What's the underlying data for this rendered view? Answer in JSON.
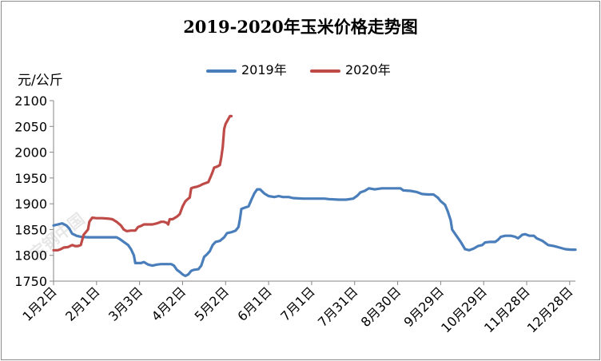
{
  "chart_data": {
    "type": "line",
    "title": "2019-2020年玉米价格走势图",
    "ylabel": "元/公斤",
    "ylim": [
      1750,
      2100
    ],
    "y_ticks": [
      1750,
      1800,
      1850,
      1900,
      1950,
      2000,
      2050,
      2100
    ],
    "x_tick_labels": [
      "1月2日",
      "2月1日",
      "3月3日",
      "4月2日",
      "5月2日",
      "6月1日",
      "7月1日",
      "7月31日",
      "8月30日",
      "9月29日",
      "10月29日",
      "11月28日",
      "12月28日"
    ],
    "x_unit": "day-of-year",
    "x_tick_days": [
      1,
      31,
      61,
      91,
      121,
      151,
      181,
      211,
      241,
      271,
      301,
      331,
      361
    ],
    "x_range": [
      1,
      365
    ],
    "grid": false,
    "legend_position": "top",
    "series": [
      {
        "name": "2019年",
        "color": "#4a7ebb",
        "points": [
          [
            1,
            1858
          ],
          [
            4,
            1860
          ],
          [
            7,
            1862
          ],
          [
            10,
            1858
          ],
          [
            12,
            1852
          ],
          [
            14,
            1842
          ],
          [
            17,
            1838
          ],
          [
            20,
            1836
          ],
          [
            25,
            1835
          ],
          [
            30,
            1835
          ],
          [
            35,
            1835
          ],
          [
            40,
            1835
          ],
          [
            45,
            1835
          ],
          [
            47,
            1832
          ],
          [
            50,
            1826
          ],
          [
            53,
            1820
          ],
          [
            55,
            1812
          ],
          [
            57,
            1800
          ],
          [
            58,
            1785
          ],
          [
            62,
            1785
          ],
          [
            64,
            1787
          ],
          [
            67,
            1782
          ],
          [
            70,
            1780
          ],
          [
            73,
            1782
          ],
          [
            76,
            1783
          ],
          [
            80,
            1783
          ],
          [
            83,
            1783
          ],
          [
            85,
            1780
          ],
          [
            87,
            1772
          ],
          [
            89,
            1768
          ],
          [
            91,
            1763
          ],
          [
            93,
            1760
          ],
          [
            95,
            1763
          ],
          [
            97,
            1770
          ],
          [
            99,
            1772
          ],
          [
            102,
            1773
          ],
          [
            104,
            1780
          ],
          [
            106,
            1797
          ],
          [
            108,
            1802
          ],
          [
            110,
            1808
          ],
          [
            112,
            1820
          ],
          [
            114,
            1826
          ],
          [
            117,
            1828
          ],
          [
            120,
            1835
          ],
          [
            122,
            1843
          ],
          [
            125,
            1845
          ],
          [
            128,
            1848
          ],
          [
            130,
            1855
          ],
          [
            131,
            1870
          ],
          [
            132,
            1890
          ],
          [
            134,
            1892
          ],
          [
            137,
            1895
          ],
          [
            139,
            1908
          ],
          [
            141,
            1920
          ],
          [
            143,
            1928
          ],
          [
            145,
            1928
          ],
          [
            148,
            1920
          ],
          [
            151,
            1915
          ],
          [
            155,
            1913
          ],
          [
            158,
            1915
          ],
          [
            161,
            1913
          ],
          [
            165,
            1913
          ],
          [
            168,
            1911
          ],
          [
            175,
            1910
          ],
          [
            185,
            1910
          ],
          [
            190,
            1910
          ],
          [
            193,
            1909
          ],
          [
            200,
            1908
          ],
          [
            205,
            1908
          ],
          [
            210,
            1910
          ],
          [
            213,
            1916
          ],
          [
            215,
            1922
          ],
          [
            218,
            1925
          ],
          [
            221,
            1930
          ],
          [
            225,
            1928
          ],
          [
            230,
            1930
          ],
          [
            238,
            1930
          ],
          [
            243,
            1930
          ],
          [
            245,
            1926
          ],
          [
            250,
            1925
          ],
          [
            254,
            1923
          ],
          [
            258,
            1919
          ],
          [
            262,
            1918
          ],
          [
            266,
            1918
          ],
          [
            269,
            1912
          ],
          [
            271,
            1905
          ],
          [
            274,
            1898
          ],
          [
            276,
            1885
          ],
          [
            278,
            1868
          ],
          [
            279,
            1850
          ],
          [
            282,
            1838
          ],
          [
            285,
            1826
          ],
          [
            288,
            1812
          ],
          [
            291,
            1810
          ],
          [
            294,
            1813
          ],
          [
            297,
            1818
          ],
          [
            300,
            1820
          ],
          [
            302,
            1825
          ],
          [
            305,
            1826
          ],
          [
            309,
            1826
          ],
          [
            311,
            1830
          ],
          [
            313,
            1836
          ],
          [
            316,
            1838
          ],
          [
            320,
            1838
          ],
          [
            323,
            1836
          ],
          [
            325,
            1833
          ],
          [
            328,
            1840
          ],
          [
            330,
            1841
          ],
          [
            333,
            1838
          ],
          [
            336,
            1838
          ],
          [
            338,
            1833
          ],
          [
            342,
            1828
          ],
          [
            346,
            1820
          ],
          [
            350,
            1818
          ],
          [
            354,
            1815
          ],
          [
            358,
            1812
          ],
          [
            362,
            1811
          ],
          [
            365,
            1811
          ]
        ]
      },
      {
        "name": "2020年",
        "color": "#be4b48",
        "points": [
          [
            1,
            1810
          ],
          [
            4,
            1810
          ],
          [
            6,
            1812
          ],
          [
            8,
            1815
          ],
          [
            11,
            1816
          ],
          [
            14,
            1820
          ],
          [
            16,
            1818
          ],
          [
            18,
            1818
          ],
          [
            20,
            1820
          ],
          [
            22,
            1840
          ],
          [
            25,
            1850
          ],
          [
            26,
            1865
          ],
          [
            28,
            1873
          ],
          [
            31,
            1872
          ],
          [
            35,
            1872
          ],
          [
            40,
            1871
          ],
          [
            42,
            1870
          ],
          [
            45,
            1865
          ],
          [
            48,
            1858
          ],
          [
            50,
            1850
          ],
          [
            52,
            1847
          ],
          [
            55,
            1848
          ],
          [
            58,
            1848
          ],
          [
            60,
            1855
          ],
          [
            62,
            1857
          ],
          [
            64,
            1860
          ],
          [
            67,
            1860
          ],
          [
            70,
            1860
          ],
          [
            73,
            1862
          ],
          [
            76,
            1865
          ],
          [
            78,
            1865
          ],
          [
            80,
            1863
          ],
          [
            81,
            1860
          ],
          [
            82,
            1870
          ],
          [
            84,
            1870
          ],
          [
            87,
            1875
          ],
          [
            89,
            1880
          ],
          [
            91,
            1895
          ],
          [
            93,
            1905
          ],
          [
            95,
            1910
          ],
          [
            96,
            1912
          ],
          [
            97,
            1930
          ],
          [
            99,
            1932
          ],
          [
            101,
            1933
          ],
          [
            103,
            1935
          ],
          [
            105,
            1938
          ],
          [
            107,
            1940
          ],
          [
            109,
            1942
          ],
          [
            111,
            1955
          ],
          [
            112,
            1962
          ],
          [
            113,
            1970
          ],
          [
            115,
            1972
          ],
          [
            117,
            1975
          ],
          [
            118,
            1990
          ],
          [
            119,
            2010
          ],
          [
            120,
            2045
          ],
          [
            121,
            2055
          ],
          [
            123,
            2065
          ],
          [
            124,
            2070
          ],
          [
            125,
            2070
          ]
        ]
      }
    ]
  },
  "watermark_text": "宝钢中国"
}
